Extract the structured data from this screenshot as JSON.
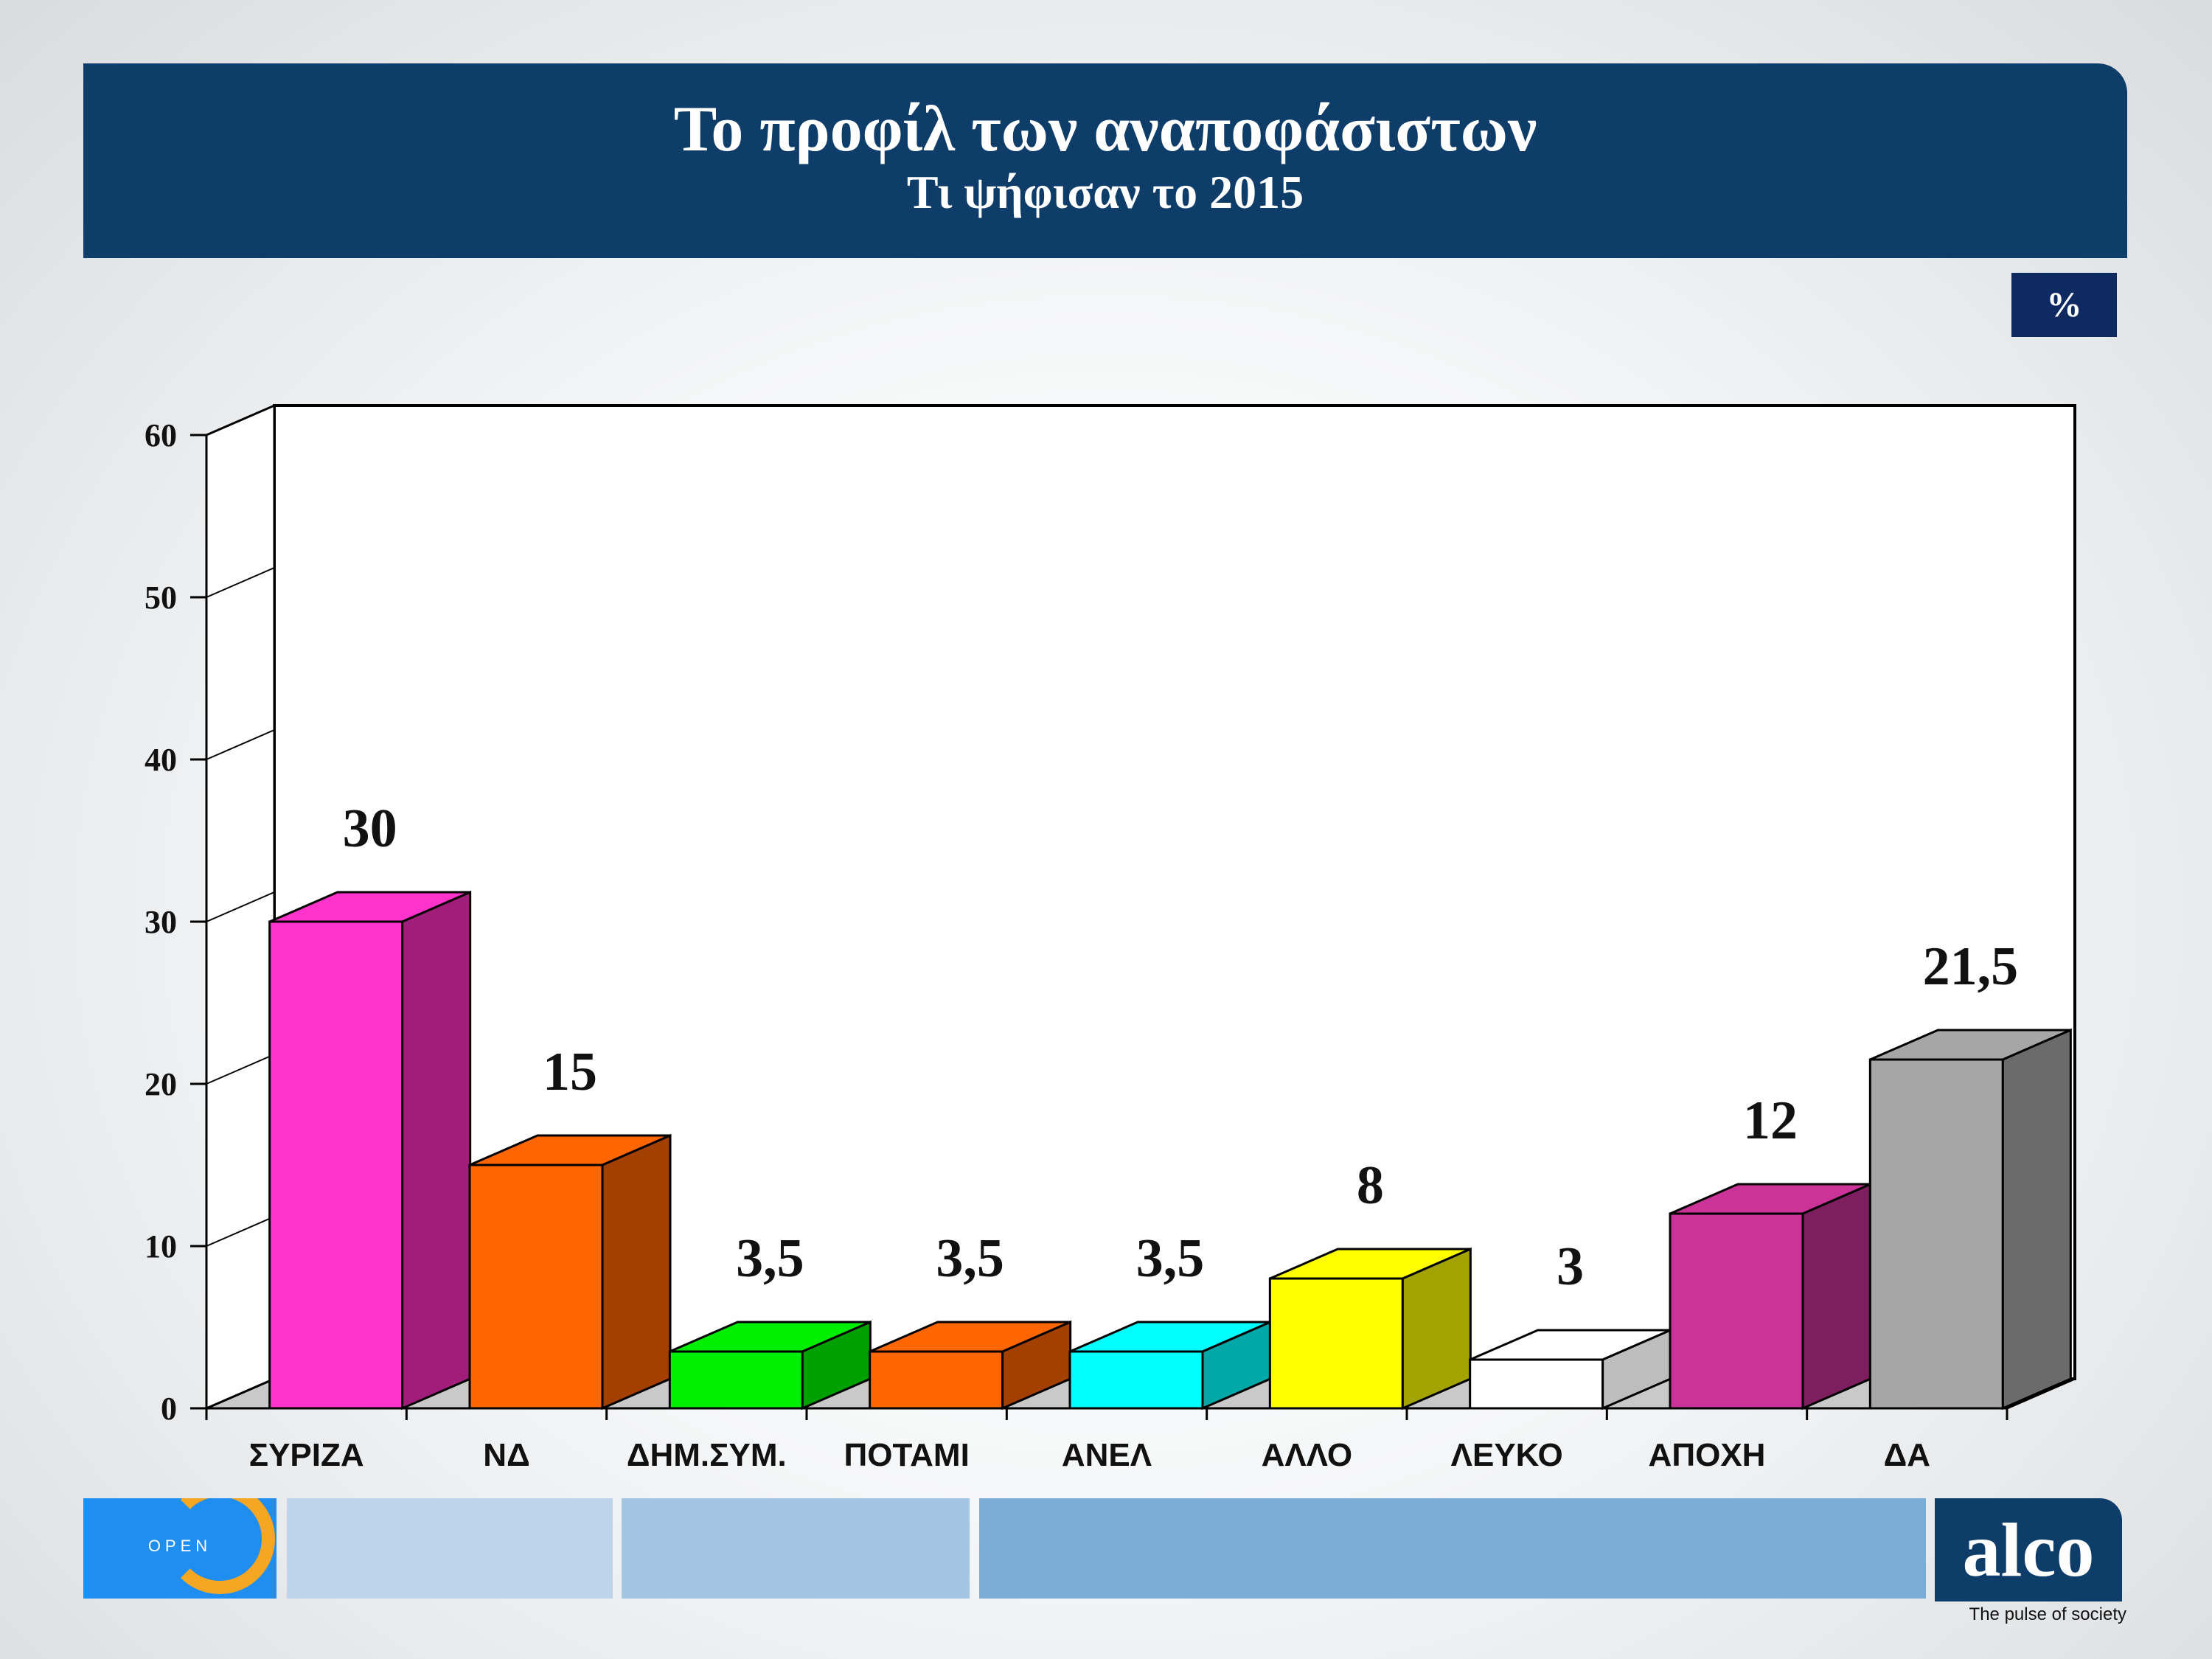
{
  "header": {
    "title": "Το προφίλ των αναποφάσιστων",
    "subtitle": "Τι ψήφισαν το 2015"
  },
  "unit_badge": "%",
  "chart_data": {
    "type": "bar",
    "title": "Το προφίλ των αναποφάσιστων",
    "subtitle": "Τι ψήφισαν το 2015",
    "unit": "%",
    "categories": [
      "ΣΥΡΙΖΑ",
      "ΝΔ",
      "ΔΗΜ.ΣΥΜ.",
      "ΠΟΤΑΜΙ",
      "ΑΝΕΛ",
      "ΑΛΛΟ",
      "ΛΕΥΚΟ",
      "ΑΠΟΧΗ",
      "ΔΑ"
    ],
    "values": [
      30,
      15,
      3.5,
      3.5,
      3.5,
      8,
      3,
      12,
      21.5
    ],
    "value_labels": [
      "30",
      "15",
      "3,5",
      "3,5",
      "3,5",
      "8",
      "3",
      "12",
      "21,5"
    ],
    "colors": [
      "#ff33cc",
      "#ff6600",
      "#00ee00",
      "#ff6600",
      "#00ffff",
      "#ffff00",
      "#ffffff",
      "#cc3399",
      "#a6a6a6"
    ],
    "side_colors": [
      "#a01e7a",
      "#a34000",
      "#00a000",
      "#a34000",
      "#00a8a8",
      "#a3a300",
      "#bdbdbd",
      "#7d1e5f",
      "#6b6b6b"
    ],
    "yticks": [
      0,
      10,
      20,
      30,
      40,
      50,
      60
    ],
    "ylim": [
      0,
      60
    ],
    "grid": false,
    "style": "3d-bar",
    "xlabel": "",
    "ylabel": ""
  },
  "footer": {
    "open_logo_text": "OPEN",
    "alco_logo_text": "alco",
    "tagline": "The pulse of society",
    "block_colors": [
      "#bed4ea",
      "#a2c5e3",
      "#7aacd6"
    ]
  }
}
